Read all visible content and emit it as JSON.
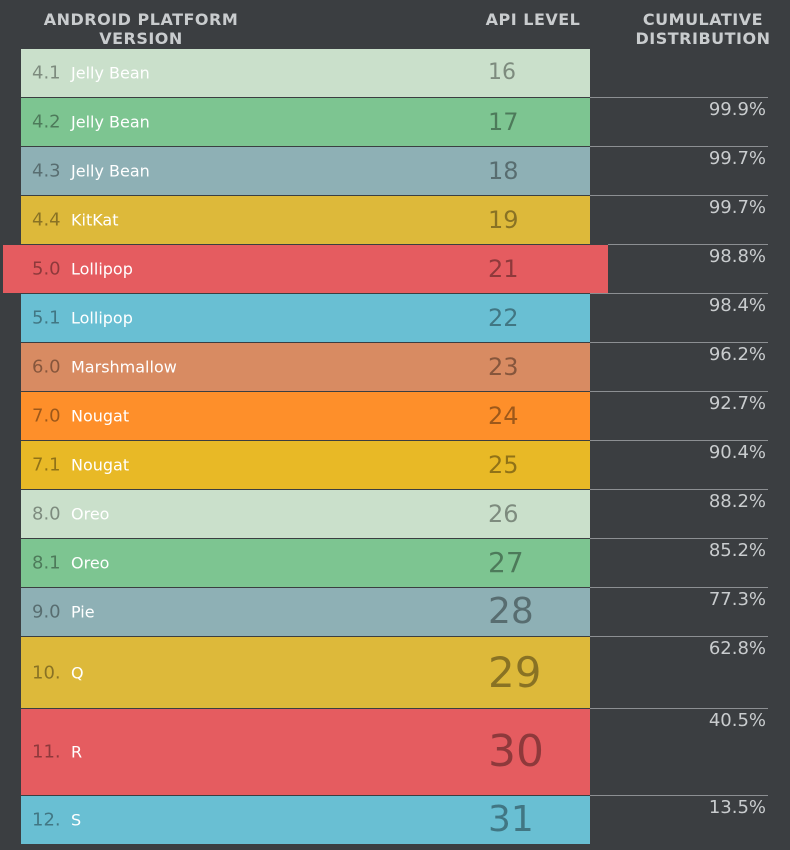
{
  "headers": {
    "version": "ANDROID PLATFORM VERSION",
    "api": "API LEVEL",
    "cumulative": "CUMULATIVE DISTRIBUTION"
  },
  "chart_data": {
    "type": "table",
    "columns": [
      "ANDROID PLATFORM VERSION",
      "API LEVEL",
      "CUMULATIVE DISTRIBUTION"
    ],
    "rows": [
      {
        "version": "4.1",
        "name": "Jelly Bean",
        "api": 16,
        "cumulative": "",
        "color": "#cae0cb"
      },
      {
        "version": "4.2",
        "name": "Jelly Bean",
        "api": 17,
        "cumulative": "99.9%",
        "color": "#7dc591"
      },
      {
        "version": "4.3",
        "name": "Jelly Bean",
        "api": 18,
        "cumulative": "99.7%",
        "color": "#8eb0b5"
      },
      {
        "version": "4.4",
        "name": "KitKat",
        "api": 19,
        "cumulative": "99.7%",
        "color": "#ddb93a"
      },
      {
        "version": "5.0",
        "name": "Lollipop",
        "api": 21,
        "cumulative": "98.8%",
        "color": "#e55c60"
      },
      {
        "version": "5.1",
        "name": "Lollipop",
        "api": 22,
        "cumulative": "98.4%",
        "color": "#69bfd3"
      },
      {
        "version": "6.0",
        "name": "Marshmallow",
        "api": 23,
        "cumulative": "96.2%",
        "color": "#d88b62"
      },
      {
        "version": "7.0",
        "name": "Nougat",
        "api": 24,
        "cumulative": "92.7%",
        "color": "#fe8f2a"
      },
      {
        "version": "7.1",
        "name": "Nougat",
        "api": 25,
        "cumulative": "90.4%",
        "color": "#e8b926"
      },
      {
        "version": "8.0",
        "name": "Oreo",
        "api": 26,
        "cumulative": "88.2%",
        "color": "#cae0cb"
      },
      {
        "version": "8.1",
        "name": "Oreo",
        "api": 27,
        "cumulative": "85.2%",
        "color": "#7dc591"
      },
      {
        "version": "9.0",
        "name": "Pie",
        "api": 28,
        "cumulative": "77.3%",
        "color": "#8eb0b5"
      },
      {
        "version": "10.",
        "name": "Q",
        "api": 29,
        "cumulative": "62.8%",
        "color": "#ddb93a"
      },
      {
        "version": "11.",
        "name": "R",
        "api": 30,
        "cumulative": "40.5%",
        "color": "#e55c60"
      },
      {
        "version": "12.",
        "name": "S",
        "api": 31,
        "cumulative": "13.5%",
        "color": "#69bfd3"
      }
    ],
    "highlighted_api": 21
  }
}
